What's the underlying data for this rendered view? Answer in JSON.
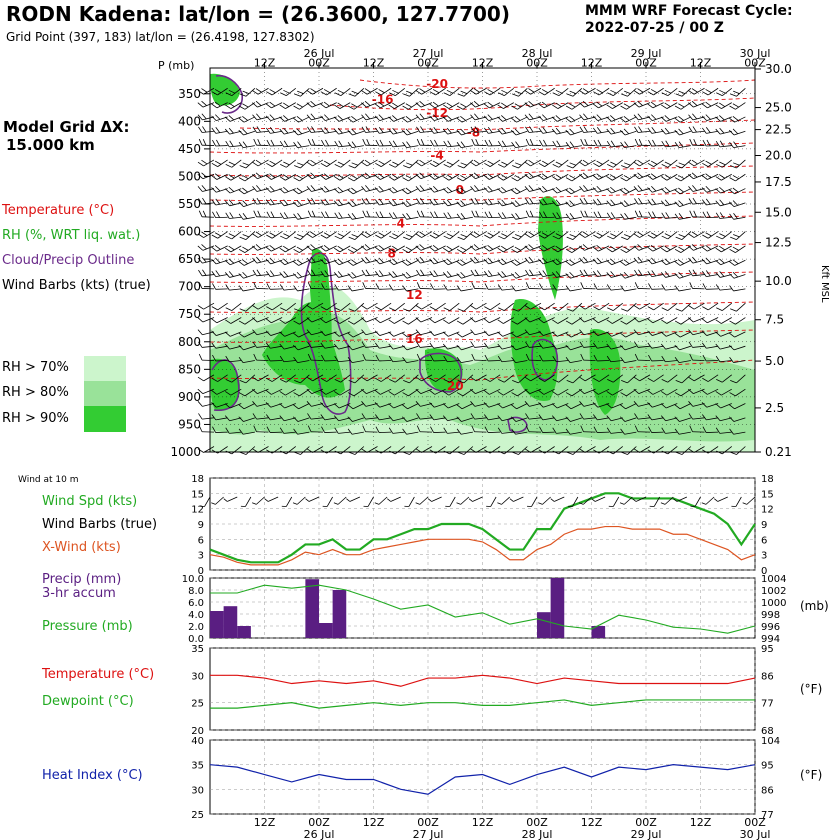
{
  "header": {
    "title": "RODN Kadena:  lat/lon = (26.3600, 127.7700)",
    "subtitle": "Grid Point (397, 183) lat/lon = (26.4198, 127.8302)",
    "cycle_line1": "MMM WRF Forecast Cycle:",
    "cycle_line2": "2022-07-25 / 00  Z",
    "model_grid_line1": "Model Grid ΔX:",
    "model_grid_line2": "15.000 km"
  },
  "colors": {
    "temperature": "#dd1111",
    "rh": "#22aa22",
    "cloud_outline": "#6a2a8a",
    "wind_barb": "#000000",
    "xwind": "#dd5522",
    "precip_bar": "#5a1e82",
    "heat_index": "#1122aa",
    "rh70": "#ccf5cc",
    "rh80": "#99e299",
    "rh90": "#33cc33"
  },
  "legend": {
    "temperature": "Temperature (°C)",
    "rh": "RH (%, WRT liq. wat.)",
    "cloud": "Cloud/Precip Outline",
    "wind": "Wind Barbs (kts) (true)",
    "rh70": "RH > 70%",
    "rh80": "RH > 80%",
    "rh90": "RH > 90%"
  },
  "chart_data": [
    {
      "type": "heatmap",
      "ylabel": "P (mb)",
      "y_axis_label_right": "Kft MSL",
      "time_axis": {
        "top_ticks": [
          "12Z",
          "00Z",
          "12Z",
          "00Z",
          "12Z",
          "00Z",
          "12Z",
          "00Z",
          "12Z",
          "00Z"
        ],
        "date_labels": [
          "26 Jul",
          "27 Jul",
          "28 Jul",
          "29 Jul",
          "30 Jul"
        ],
        "hours": [
          12,
          24,
          36,
          48,
          60,
          72,
          84,
          96,
          108,
          120
        ],
        "xlim": [
          0,
          120
        ]
      },
      "pressure_levels": [
        350,
        400,
        450,
        500,
        550,
        600,
        650,
        700,
        750,
        800,
        850,
        900,
        950,
        1000
      ],
      "ylim": [
        300,
        1000
      ],
      "height_kft": [
        {
          "label": "30.0",
          "p": 305
        },
        {
          "label": "25.0",
          "p": 375
        },
        {
          "label": "22.5",
          "p": 415
        },
        {
          "label": "20.0",
          "p": 462
        },
        {
          "label": "17.5",
          "p": 510
        },
        {
          "label": "15.0",
          "p": 565
        },
        {
          "label": "12.5",
          "p": 620
        },
        {
          "label": "10.0",
          "p": 690
        },
        {
          "label": "7.5",
          "p": 760
        },
        {
          "label": "5.0",
          "p": 835
        },
        {
          "label": "2.5",
          "p": 920
        },
        {
          "label": "0.21",
          "p": 1000
        }
      ],
      "temperature_labels": [
        {
          "value": "-20",
          "hour": 50,
          "p": 332
        },
        {
          "value": "-16",
          "hour": 38,
          "p": 360
        },
        {
          "value": "-12",
          "hour": 50,
          "p": 385
        },
        {
          "value": "-8",
          "hour": 58,
          "p": 420
        },
        {
          "value": "-4",
          "hour": 50,
          "p": 462
        },
        {
          "value": "0",
          "hour": 55,
          "p": 525
        },
        {
          "value": "4",
          "hour": 42,
          "p": 585
        },
        {
          "value": "8",
          "hour": 40,
          "p": 640
        },
        {
          "value": "12",
          "hour": 45,
          "p": 715
        },
        {
          "value": "16",
          "hour": 45,
          "p": 795
        },
        {
          "value": "20",
          "hour": 54,
          "p": 880
        }
      ]
    },
    {
      "type": "line",
      "panel_title": "Wind at 10 m",
      "labels": [
        "Wind Spd (kts)",
        "Wind Barbs (true)",
        "X-Wind (kts)"
      ],
      "x": [
        0,
        3,
        6,
        9,
        12,
        15,
        18,
        21,
        24,
        27,
        30,
        33,
        36,
        39,
        42,
        45,
        48,
        51,
        54,
        57,
        60,
        63,
        66,
        69,
        72,
        75,
        78,
        81,
        84,
        87,
        90,
        93,
        96,
        99,
        102,
        105,
        108,
        111,
        114,
        117,
        120
      ],
      "series": [
        {
          "name": "Wind Spd (kts)",
          "values": [
            4,
            3,
            2,
            1.5,
            1.5,
            1.5,
            3,
            5,
            5,
            6,
            4,
            4,
            6,
            6,
            7,
            8,
            8,
            9,
            9,
            9,
            8,
            6,
            4,
            4,
            8,
            8,
            12,
            13,
            14,
            15,
            15,
            14,
            14,
            14,
            14,
            13,
            12,
            11,
            9,
            5,
            9
          ]
        },
        {
          "name": "X-Wind (kts)",
          "values": [
            3,
            2.5,
            1.5,
            1,
            1,
            1,
            2,
            3.5,
            3,
            4,
            3,
            3,
            4,
            4.5,
            5,
            5.5,
            6,
            6,
            6,
            6,
            5.5,
            4,
            2,
            2,
            4,
            5,
            7,
            8,
            8,
            8.5,
            8.5,
            8,
            8,
            8,
            7,
            7,
            6,
            5,
            4,
            2,
            3
          ]
        }
      ],
      "yticks": [
        0,
        3,
        6,
        9,
        12,
        15,
        18
      ],
      "ylim": [
        0,
        18
      ]
    },
    {
      "type": "bar",
      "labels": [
        "Precip (mm)",
        "3-hr accum",
        "Pressure (mb)"
      ],
      "units_right": "(mb)",
      "precip_bars": [
        {
          "hour": 1.5,
          "value": 4.5
        },
        {
          "hour": 4.5,
          "value": 5.3
        },
        {
          "hour": 7.5,
          "value": 2.0
        },
        {
          "hour": 22.5,
          "value": 9.8
        },
        {
          "hour": 25.5,
          "value": 2.5
        },
        {
          "hour": 28.5,
          "value": 8.0
        },
        {
          "hour": 73.5,
          "value": 4.3
        },
        {
          "hour": 76.5,
          "value": 10.0
        },
        {
          "hour": 85.5,
          "value": 2.0
        }
      ],
      "pressure_x": [
        0,
        6,
        12,
        18,
        24,
        30,
        36,
        42,
        48,
        54,
        60,
        66,
        72,
        78,
        84,
        90,
        96,
        102,
        108,
        114,
        120
      ],
      "pressure_values": [
        1001.5,
        1001.5,
        1002.8,
        1002.3,
        1002.8,
        1002.0,
        1000.5,
        998.8,
        999.5,
        997.5,
        998.2,
        996.3,
        997.2,
        996.0,
        995.5,
        997.8,
        997.0,
        995.8,
        995.5,
        994.8,
        996.0
      ],
      "yticks_left": [
        "0.0",
        "2.0",
        "4.0",
        "6.0",
        "8.0",
        "10.0"
      ],
      "ylim_left": [
        0,
        10
      ],
      "yticks_right": [
        "994",
        "996",
        "998",
        "1000",
        "1002",
        "1004"
      ],
      "ylim_right": [
        994,
        1004
      ]
    },
    {
      "type": "line",
      "labels": [
        "Temperature (°C)",
        "Dewpoint (°C)"
      ],
      "units_right": "(°F)",
      "x": [
        0,
        6,
        12,
        18,
        24,
        30,
        36,
        42,
        48,
        54,
        60,
        66,
        72,
        78,
        84,
        90,
        96,
        102,
        108,
        114,
        120
      ],
      "series": [
        {
          "name": "Temperature (°C)",
          "values": [
            30,
            30,
            29.5,
            28.5,
            29,
            28.5,
            29,
            28,
            29.5,
            29.5,
            30,
            29.5,
            28.5,
            29.5,
            29,
            28.5,
            28.5,
            28.5,
            28.5,
            28.5,
            29.5
          ]
        },
        {
          "name": "Dewpoint (°C)",
          "values": [
            24,
            24,
            24.5,
            25,
            24,
            24.5,
            25,
            24.5,
            25,
            25,
            24.5,
            24.5,
            25,
            25.5,
            24.5,
            25,
            25.5,
            25.5,
            25.5,
            25.5,
            25.5
          ]
        }
      ],
      "yticks_left": [
        "20",
        "25",
        "30",
        "35"
      ],
      "ylim": [
        20,
        35
      ],
      "yticks_right": [
        "68",
        "77",
        "86",
        "95"
      ]
    },
    {
      "type": "line",
      "labels": [
        "Heat Index (°C)"
      ],
      "units_right": "(°F)",
      "x": [
        0,
        6,
        12,
        18,
        24,
        30,
        36,
        42,
        48,
        54,
        60,
        66,
        72,
        78,
        84,
        90,
        96,
        102,
        108,
        114,
        120
      ],
      "series": [
        {
          "name": "Heat Index (°C)",
          "values": [
            35,
            34.5,
            33,
            31.5,
            33,
            32,
            32,
            30,
            29,
            32.5,
            33,
            31,
            33,
            34.5,
            32.5,
            34.5,
            34,
            35,
            34.5,
            34,
            35
          ]
        }
      ],
      "yticks_left": [
        "25",
        "30",
        "35",
        "40"
      ],
      "ylim": [
        25,
        40
      ],
      "yticks_right": [
        "77",
        "86",
        "95",
        "104"
      ],
      "bottom_ticks": [
        "12Z",
        "00Z",
        "12Z",
        "00Z",
        "12Z",
        "00Z",
        "12Z",
        "00Z",
        "12Z",
        "00Z"
      ],
      "date_labels": [
        "26 Jul",
        "27 Jul",
        "28 Jul",
        "29 Jul",
        "30 Jul"
      ]
    }
  ]
}
